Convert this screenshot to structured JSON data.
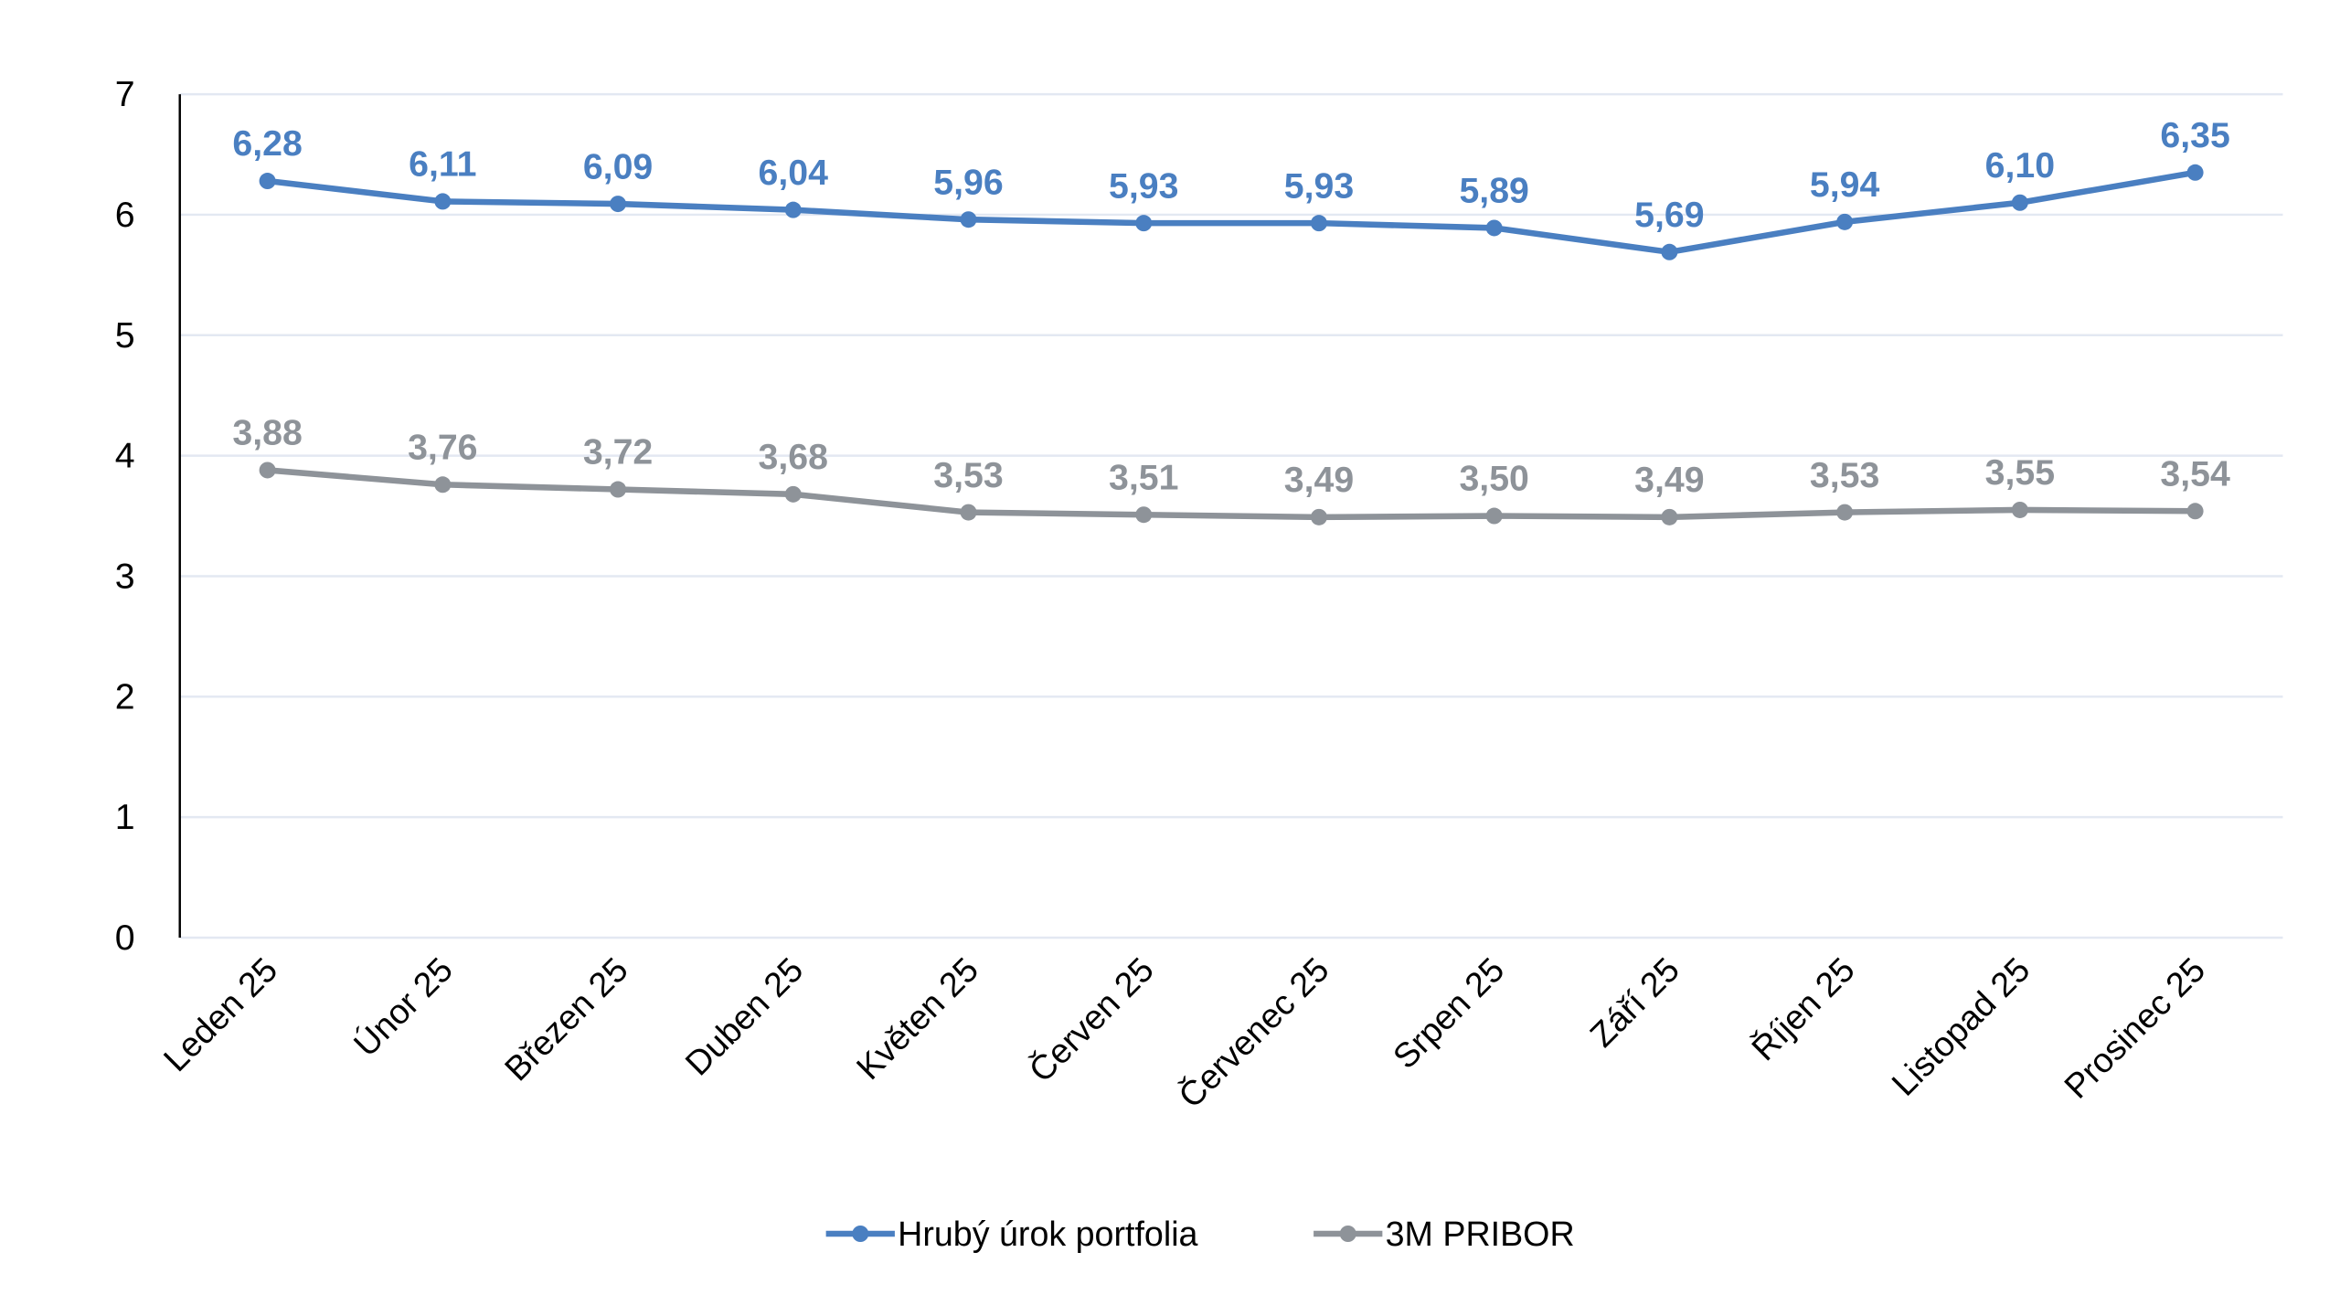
{
  "chart_data": {
    "type": "line",
    "title": "",
    "xlabel": "",
    "ylabel": "",
    "ylim": [
      0,
      7
    ],
    "yticks": [
      "0",
      "1",
      "2",
      "3",
      "4",
      "5",
      "6",
      "7"
    ],
    "grid": true,
    "legend_position": "bottom",
    "categories": [
      "Leden 25",
      "Únor 25",
      "Březen 25",
      "Duben 25",
      "Květen 25",
      "Červen 25",
      "Červenec 25",
      "Srpen 25",
      "Září 25",
      "Říjen 25",
      "Listopad 25",
      "Prosinec 25"
    ],
    "series": [
      {
        "name": "Hrubý úrok portfolia",
        "color": "#4a7fc1",
        "values": [
          6.28,
          6.11,
          6.09,
          6.04,
          5.96,
          5.93,
          5.93,
          5.89,
          5.69,
          5.94,
          6.1,
          6.35
        ],
        "labels": [
          "6,28",
          "6,11",
          "6,09",
          "6,04",
          "5,96",
          "5,93",
          "5,93",
          "5,89",
          "5,69",
          "5,94",
          "6,10",
          "6,35"
        ]
      },
      {
        "name": "3M PRIBOR",
        "color": "#8e9399",
        "values": [
          3.88,
          3.76,
          3.72,
          3.68,
          3.53,
          3.51,
          3.49,
          3.5,
          3.49,
          3.53,
          3.55,
          3.54
        ],
        "labels": [
          "3,88",
          "3,76",
          "3,72",
          "3,68",
          "3,53",
          "3,51",
          "3,49",
          "3,50",
          "3,49",
          "3,53",
          "3,55",
          "3,54"
        ]
      }
    ]
  }
}
